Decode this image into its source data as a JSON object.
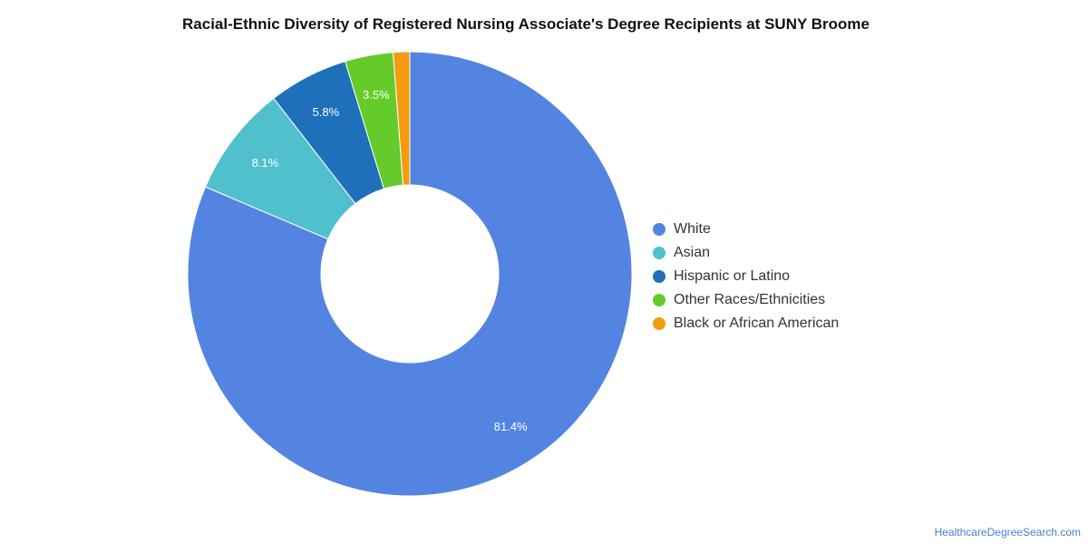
{
  "chart_data": {
    "type": "pie",
    "title": "Racial-Ethnic Diversity of Registered Nursing Associate's Degree Recipients at SUNY Broome",
    "donut": true,
    "categories": [
      "White",
      "Asian",
      "Hispanic or Latino",
      "Other Races/Ethnicities",
      "Black or African American"
    ],
    "values": [
      81.4,
      8.1,
      5.8,
      3.5,
      1.2
    ],
    "labels": [
      "81.4%",
      "8.1%",
      "5.8%",
      "3.5%",
      ""
    ],
    "colors": [
      "#5484e2",
      "#4fc0cc",
      "#1f70bb",
      "#64cb2a",
      "#f59b0f"
    ],
    "legend_position": "right"
  },
  "credit": "HealthcareDegreeSearch.com"
}
